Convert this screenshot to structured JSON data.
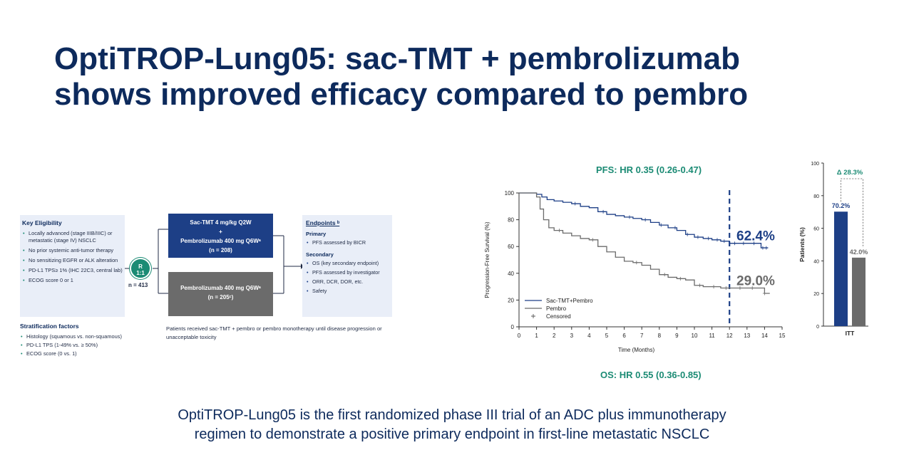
{
  "title": {
    "line1": "OptiTROP-Lung05: sac-TMT + pembrolizumab",
    "line2": "shows improved efficacy compared to pembro"
  },
  "design": {
    "eligibility": {
      "heading": "Key Eligibility",
      "items": [
        "Locally advanced (stage IIIB/IIIC) or metastatic (stage IV) NSCLC",
        "No prior systemic anti-tumor therapy",
        "No sensitizing EGFR or ALK alteration",
        "PD-L1 TPS≥ 1% (IHC 22C3, central lab)",
        "ECOG score 0 or 1"
      ]
    },
    "stratification": {
      "heading": "Stratification factors",
      "items": [
        "Histology (squamous vs. non-squamous)",
        "PD-L1 TPS (1-49% vs. ≥ 50%)",
        "ECOG score (0 vs. 1)"
      ]
    },
    "randomization": {
      "r": "R",
      "ratio": "1:1",
      "n": "n = 413"
    },
    "arm1": {
      "line1": "Sac-TMT 4 mg/kg Q2W",
      "line2": "+",
      "line3": "Pembrolizumab 400 mg Q6Wᵃ",
      "line4": "(n = 208)"
    },
    "arm2": {
      "line1": "Pembrolizumab 400 mg Q6Wᵃ",
      "line2": "(n = 205ᶜ)"
    },
    "endpoints": {
      "heading": "Endpoints ᵇ",
      "primary_label": "Primary",
      "primary": [
        "PFS assessed by BICR"
      ],
      "secondary_label": "Secondary",
      "secondary": [
        "OS (key secondary endpoint)",
        "PFS assessed by investigator",
        "ORR, DCR, DOR, etc.",
        "Safety"
      ]
    },
    "note": "Patients received sac-TMT + pembro or pembro monotherapy until disease progression or unacceptable toxicity"
  },
  "pfs_label": "PFS: HR 0.35 (0.26-0.47)",
  "os_label": "OS: HR 0.55 (0.36-0.85)",
  "footer": {
    "line1": "OptiTROP-Lung05 is the first randomized phase III trial of an ADC plus immunotherapy",
    "line2": "regimen to demonstrate a positive primary endpoint in first-line metastatic NSCLC"
  },
  "colors": {
    "navy": "#0d2a5c",
    "combo": "#1d3f86",
    "pembro": "#6b6b6b",
    "green": "#1b8b74"
  },
  "chart_data": [
    {
      "type": "line",
      "ylabel": "Progression-Free Survival (%)",
      "xlabel": "Time (Months)",
      "xlim": [
        0,
        15
      ],
      "ylim": [
        0,
        100
      ],
      "xticks": [
        0,
        1,
        2,
        3,
        4,
        5,
        6,
        7,
        8,
        9,
        10,
        11,
        12,
        13,
        14,
        15
      ],
      "yticks": [
        0,
        20,
        40,
        60,
        80,
        100
      ],
      "reference_line_x": 12,
      "annotations": [
        {
          "text": "62.4%",
          "series": "Sac-TMT+Pembro",
          "x": 12,
          "y": 62.4
        },
        {
          "text": "29.0%",
          "series": "Pembro",
          "x": 12,
          "y": 29.0
        }
      ],
      "legend": [
        "Sac-TMT+Pembro",
        "Pembro",
        "Censored"
      ],
      "series": [
        {
          "name": "Sac-TMT+Pembro",
          "color": "#1d3f86",
          "x": [
            0,
            1,
            1.3,
            1.6,
            2.0,
            2.5,
            3.0,
            3.5,
            4.0,
            4.5,
            5.0,
            5.5,
            6.0,
            6.5,
            7.0,
            7.5,
            8.0,
            8.5,
            9.0,
            9.5,
            10.0,
            10.5,
            11.0,
            11.5,
            12.0,
            12.5,
            13.0,
            13.5,
            13.8,
            14.2
          ],
          "y": [
            100,
            99,
            97,
            95,
            94,
            93,
            92,
            90,
            89,
            86,
            84,
            83,
            82,
            81,
            80,
            78,
            76,
            74,
            72,
            69,
            67,
            66,
            65,
            64,
            62.4,
            62.4,
            62.4,
            62.4,
            59,
            59
          ],
          "censored_x": [
            3.2,
            4.8,
            6.3,
            7.2,
            8.1,
            8.9,
            9.6,
            10.2,
            10.8,
            11.3,
            11.7,
            12.3,
            12.8,
            13.4,
            13.9,
            14.1
          ]
        },
        {
          "name": "Pembro",
          "color": "#6b6b6b",
          "x": [
            0,
            1.0,
            1.2,
            1.4,
            1.7,
            2.0,
            2.5,
            3.0,
            3.5,
            4.0,
            4.5,
            5.0,
            5.5,
            6.0,
            6.5,
            7.0,
            7.5,
            8.0,
            8.5,
            9.0,
            9.5,
            10.0,
            10.5,
            11.0,
            11.5,
            12.0,
            12.5,
            13.0,
            13.5,
            14.0,
            14.3
          ],
          "y": [
            100,
            97,
            88,
            80,
            74,
            72,
            70,
            68,
            66,
            65,
            60,
            56,
            52,
            49,
            48,
            46,
            43,
            39,
            37,
            36,
            35,
            31,
            30,
            30,
            29,
            29.0,
            29.0,
            29.0,
            29.0,
            25,
            25
          ],
          "censored_x": [
            2.3,
            4.2,
            6.7,
            8.3,
            9.2,
            10.3,
            11.1,
            11.8,
            12.6,
            13.3,
            14.0
          ]
        }
      ]
    },
    {
      "type": "bar",
      "categories": [
        "ITT"
      ],
      "ylabel": "Patients (%)",
      "ylim": [
        0,
        100
      ],
      "yticks": [
        0,
        20,
        40,
        60,
        80,
        100
      ],
      "series": [
        {
          "name": "Sac-TMT+Pembro",
          "color": "#1d3f86",
          "values": [
            70.2
          ],
          "label": "70.2%"
        },
        {
          "name": "Pembro",
          "color": "#6b6b6b",
          "values": [
            42.0
          ],
          "label": "42.0%"
        }
      ],
      "delta_label": "Δ 28.3%"
    }
  ]
}
